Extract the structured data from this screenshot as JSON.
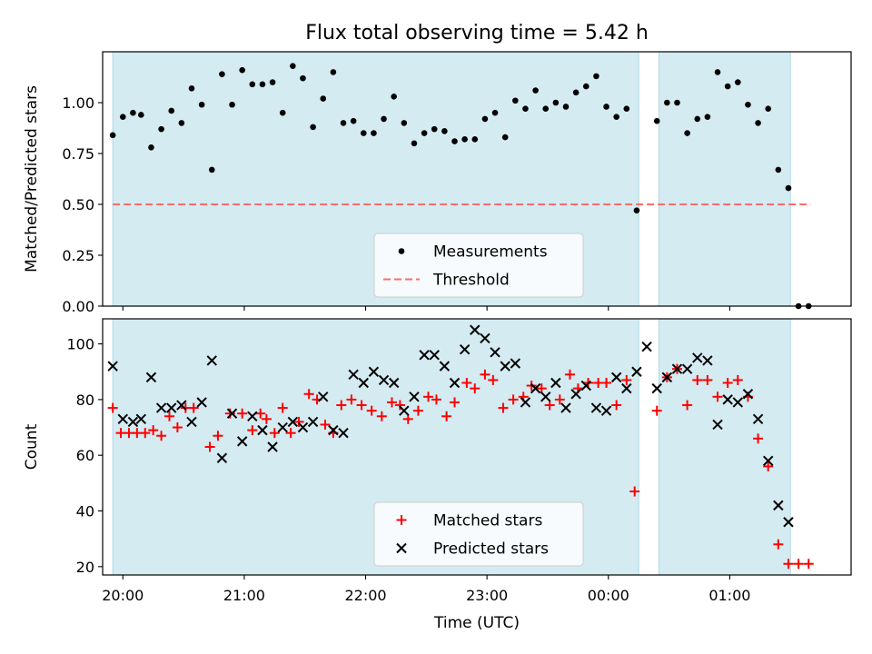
{
  "chart_data": [
    {
      "type": "scatter",
      "title": "Flux total observing time = 5.42 h",
      "xlabel": "",
      "ylabel": "Matched/Predicted stars",
      "x_range": [
        "19:50",
        "02:00"
      ],
      "ylim": [
        0,
        1.25
      ],
      "y_ticks": [
        0.0,
        0.25,
        0.5,
        0.75,
        1.0
      ],
      "y_tick_labels": [
        "0.00",
        "0.25",
        "0.50",
        "0.75",
        "1.00"
      ],
      "legend": {
        "placement": "lower center"
      },
      "shaded_intervals": [
        [
          "19:55",
          "00:15"
        ],
        [
          "00:25",
          "01:30"
        ]
      ],
      "series": [
        {
          "name": "Measurements",
          "kind": "dots",
          "color": "#000000",
          "points": [
            [
              "19:55",
              0.84
            ],
            [
              "20:00",
              0.93
            ],
            [
              "20:05",
              0.95
            ],
            [
              "20:09",
              0.94
            ],
            [
              "20:14",
              0.78
            ],
            [
              "20:19",
              0.87
            ],
            [
              "20:24",
              0.96
            ],
            [
              "20:29",
              0.9
            ],
            [
              "20:34",
              1.07
            ],
            [
              "20:39",
              0.99
            ],
            [
              "20:44",
              0.67
            ],
            [
              "20:49",
              1.14
            ],
            [
              "20:54",
              0.99
            ],
            [
              "20:59",
              1.16
            ],
            [
              "21:04",
              1.09
            ],
            [
              "21:09",
              1.09
            ],
            [
              "21:14",
              1.1
            ],
            [
              "21:19",
              0.95
            ],
            [
              "21:24",
              1.18
            ],
            [
              "21:29",
              1.12
            ],
            [
              "21:34",
              0.88
            ],
            [
              "21:39",
              1.02
            ],
            [
              "21:44",
              1.15
            ],
            [
              "21:49",
              0.9
            ],
            [
              "21:54",
              0.91
            ],
            [
              "21:59",
              0.85
            ],
            [
              "22:04",
              0.85
            ],
            [
              "22:09",
              0.92
            ],
            [
              "22:14",
              1.03
            ],
            [
              "22:19",
              0.9
            ],
            [
              "22:24",
              0.8
            ],
            [
              "22:29",
              0.85
            ],
            [
              "22:34",
              0.87
            ],
            [
              "22:39",
              0.86
            ],
            [
              "22:44",
              0.81
            ],
            [
              "22:49",
              0.82
            ],
            [
              "22:54",
              0.82
            ],
            [
              "22:59",
              0.92
            ],
            [
              "23:04",
              0.95
            ],
            [
              "23:09",
              0.83
            ],
            [
              "23:14",
              1.01
            ],
            [
              "23:19",
              0.97
            ],
            [
              "23:24",
              1.06
            ],
            [
              "23:29",
              0.97
            ],
            [
              "23:34",
              1.0
            ],
            [
              "23:39",
              0.98
            ],
            [
              "23:44",
              1.05
            ],
            [
              "23:49",
              1.08
            ],
            [
              "23:54",
              1.13
            ],
            [
              "23:59",
              0.98
            ],
            [
              "00:04",
              0.93
            ],
            [
              "00:09",
              0.97
            ],
            [
              "00:14",
              0.47
            ],
            [
              "00:24",
              0.91
            ],
            [
              "00:29",
              1.0
            ],
            [
              "00:34",
              1.0
            ],
            [
              "00:39",
              0.85
            ],
            [
              "00:44",
              0.92
            ],
            [
              "00:49",
              0.93
            ],
            [
              "00:54",
              1.15
            ],
            [
              "00:59",
              1.08
            ],
            [
              "01:04",
              1.1
            ],
            [
              "01:09",
              0.99
            ],
            [
              "01:14",
              0.9
            ],
            [
              "01:19",
              0.97
            ],
            [
              "01:24",
              0.67
            ],
            [
              "01:29",
              0.58
            ],
            [
              "01:34",
              0.0
            ],
            [
              "01:39",
              0.0
            ]
          ]
        },
        {
          "name": "Threshold",
          "kind": "dashed-line",
          "color": "#ff6b6b",
          "x": [
            "19:55",
            "01:40"
          ],
          "y": 0.5
        }
      ]
    },
    {
      "type": "scatter",
      "title": "",
      "xlabel": "Time (UTC)",
      "ylabel": "Count",
      "x_range": [
        "19:50",
        "02:00"
      ],
      "ylim": [
        17,
        109
      ],
      "y_ticks": [
        20,
        40,
        60,
        80,
        100
      ],
      "x_ticks": [
        "20:00",
        "21:00",
        "22:00",
        "23:00",
        "00:00",
        "01:00"
      ],
      "legend": {
        "placement": "lower center"
      },
      "shaded_intervals": [
        [
          "19:55",
          "00:15"
        ],
        [
          "00:25",
          "01:30"
        ]
      ],
      "series": [
        {
          "name": "Matched stars",
          "kind": "plus",
          "color": "#ff0000",
          "points": [
            [
              "19:55",
              77
            ],
            [
              "19:59",
              68
            ],
            [
              "20:03",
              68
            ],
            [
              "20:07",
              68
            ],
            [
              "20:11",
              68
            ],
            [
              "20:15",
              69
            ],
            [
              "20:19",
              67
            ],
            [
              "20:23",
              74
            ],
            [
              "20:27",
              70
            ],
            [
              "20:31",
              77
            ],
            [
              "20:35",
              77
            ],
            [
              "20:43",
              63
            ],
            [
              "20:47",
              67
            ],
            [
              "20:53",
              75
            ],
            [
              "20:59",
              75
            ],
            [
              "21:04",
              69
            ],
            [
              "21:08",
              75
            ],
            [
              "21:11",
              73
            ],
            [
              "21:15",
              68
            ],
            [
              "21:19",
              77
            ],
            [
              "21:23",
              68
            ],
            [
              "21:27",
              72
            ],
            [
              "21:32",
              82
            ],
            [
              "21:36",
              80
            ],
            [
              "21:40",
              71
            ],
            [
              "21:44",
              68
            ],
            [
              "21:48",
              78
            ],
            [
              "21:53",
              80
            ],
            [
              "21:58",
              78
            ],
            [
              "22:03",
              76
            ],
            [
              "22:08",
              74
            ],
            [
              "22:13",
              79
            ],
            [
              "22:17",
              78
            ],
            [
              "22:21",
              73
            ],
            [
              "22:26",
              76
            ],
            [
              "22:31",
              81
            ],
            [
              "22:35",
              80
            ],
            [
              "22:40",
              74
            ],
            [
              "22:44",
              79
            ],
            [
              "22:50",
              86
            ],
            [
              "22:54",
              84
            ],
            [
              "22:59",
              89
            ],
            [
              "23:03",
              87
            ],
            [
              "23:08",
              77
            ],
            [
              "23:13",
              80
            ],
            [
              "23:18",
              81
            ],
            [
              "23:22",
              85
            ],
            [
              "23:27",
              84
            ],
            [
              "23:31",
              78
            ],
            [
              "23:36",
              80
            ],
            [
              "23:41",
              89
            ],
            [
              "23:45",
              84
            ],
            [
              "23:50",
              86
            ],
            [
              "23:55",
              86
            ],
            [
              "23:59",
              86
            ],
            [
              "00:04",
              78
            ],
            [
              "00:09",
              87
            ],
            [
              "00:13",
              47
            ],
            [
              "00:24",
              76
            ],
            [
              "00:29",
              88
            ],
            [
              "00:34",
              91
            ],
            [
              "00:39",
              78
            ],
            [
              "00:44",
              87
            ],
            [
              "00:49",
              87
            ],
            [
              "00:54",
              81
            ],
            [
              "00:59",
              86
            ],
            [
              "01:04",
              87
            ],
            [
              "01:09",
              81
            ],
            [
              "01:14",
              66
            ],
            [
              "01:19",
              56
            ],
            [
              "01:24",
              28
            ],
            [
              "01:29",
              21
            ],
            [
              "01:34",
              21
            ],
            [
              "01:39",
              21
            ]
          ]
        },
        {
          "name": "Predicted stars",
          "kind": "x",
          "color": "#000000",
          "points": [
            [
              "19:55",
              92
            ],
            [
              "20:00",
              73
            ],
            [
              "20:05",
              72
            ],
            [
              "20:09",
              73
            ],
            [
              "20:14",
              88
            ],
            [
              "20:19",
              77
            ],
            [
              "20:24",
              77
            ],
            [
              "20:29",
              78
            ],
            [
              "20:34",
              72
            ],
            [
              "20:39",
              79
            ],
            [
              "20:44",
              94
            ],
            [
              "20:49",
              59
            ],
            [
              "20:54",
              75
            ],
            [
              "20:59",
              65
            ],
            [
              "21:04",
              74
            ],
            [
              "21:09",
              69
            ],
            [
              "21:14",
              63
            ],
            [
              "21:19",
              70
            ],
            [
              "21:24",
              72
            ],
            [
              "21:29",
              70
            ],
            [
              "21:34",
              72
            ],
            [
              "21:39",
              81
            ],
            [
              "21:44",
              69
            ],
            [
              "21:49",
              68
            ],
            [
              "21:54",
              89
            ],
            [
              "21:59",
              86
            ],
            [
              "22:04",
              90
            ],
            [
              "22:09",
              87
            ],
            [
              "22:14",
              86
            ],
            [
              "22:19",
              76
            ],
            [
              "22:24",
              81
            ],
            [
              "22:29",
              96
            ],
            [
              "22:34",
              96
            ],
            [
              "22:39",
              92
            ],
            [
              "22:44",
              86
            ],
            [
              "22:49",
              98
            ],
            [
              "22:54",
              105
            ],
            [
              "22:59",
              102
            ],
            [
              "23:04",
              97
            ],
            [
              "23:09",
              92
            ],
            [
              "23:14",
              93
            ],
            [
              "23:19",
              79
            ],
            [
              "23:24",
              84
            ],
            [
              "23:29",
              81
            ],
            [
              "23:34",
              86
            ],
            [
              "23:39",
              77
            ],
            [
              "23:44",
              82
            ],
            [
              "23:49",
              85
            ],
            [
              "23:54",
              77
            ],
            [
              "23:59",
              76
            ],
            [
              "00:04",
              88
            ],
            [
              "00:09",
              84
            ],
            [
              "00:14",
              90
            ],
            [
              "00:19",
              99
            ],
            [
              "00:24",
              84
            ],
            [
              "00:29",
              88
            ],
            [
              "00:34",
              91
            ],
            [
              "00:39",
              91
            ],
            [
              "00:44",
              95
            ],
            [
              "00:49",
              94
            ],
            [
              "00:54",
              71
            ],
            [
              "00:59",
              80
            ],
            [
              "01:04",
              79
            ],
            [
              "01:09",
              82
            ],
            [
              "01:14",
              73
            ],
            [
              "01:19",
              58
            ],
            [
              "01:24",
              42
            ],
            [
              "01:29",
              36
            ]
          ]
        }
      ]
    }
  ]
}
